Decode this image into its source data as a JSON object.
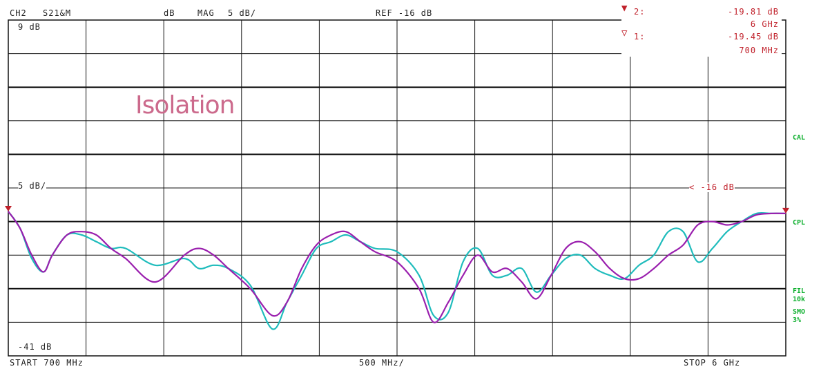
{
  "header": {
    "channel": "CH2",
    "param": "S21&M",
    "unit": "dB",
    "format": "MAG",
    "scale": "5 dB/",
    "ref": "REF -16 dB"
  },
  "markers": [
    {
      "symbol": "▼",
      "label": "2:",
      "value": "-19.81 dB",
      "freq": "6 GHz"
    },
    {
      "symbol": "▽",
      "label": "1:",
      "value": "-19.45 dB",
      "freq": "700 MHz"
    }
  ],
  "side_labels": {
    "cal": "CAL",
    "cpl": "CPL",
    "fil": "FIL",
    "fil_val": "10k",
    "smo": "SMO",
    "smo_val": "3%"
  },
  "grid_labels": {
    "top": "9 dB",
    "mid": "5 dB/",
    "bottom": "-41 dB",
    "ref": "< -16 dB"
  },
  "footer": {
    "start": "START 700 MHz",
    "span": "500 MHz/",
    "stop": "STOP 6 GHz"
  },
  "colors": {
    "trace1": "#9a1fae",
    "trace2": "#1fbcbc",
    "marker": "#c0202a",
    "annot": "#10b030"
  },
  "chart_data": {
    "type": "line",
    "title": "Isolation",
    "xlabel": "",
    "ylabel": "",
    "xlim": [
      0.7,
      6.0
    ],
    "ylim": [
      -41,
      9
    ],
    "x_unit": "GHz",
    "y_unit": "dB",
    "series": [
      {
        "x": [
          0.7,
          0.78,
          0.86,
          0.94,
          1.0,
          1.1,
          1.2,
          1.3,
          1.4,
          1.5,
          1.7,
          1.9,
          2.0,
          2.1,
          2.2,
          2.35,
          2.5,
          2.6,
          2.7,
          2.8,
          2.9,
          3.0,
          3.1,
          3.2,
          3.35,
          3.5,
          3.6,
          3.7,
          3.8,
          3.9,
          4.0,
          4.1,
          4.2,
          4.3,
          4.4,
          4.5,
          4.6,
          4.7,
          4.8,
          4.9,
          5.0,
          5.1,
          5.2,
          5.3,
          5.4,
          5.5,
          5.6,
          5.7,
          5.8,
          5.9,
          6.0
        ],
        "values": [
          -19.5,
          -22,
          -26,
          -28.5,
          -26,
          -23,
          -22.5,
          -23,
          -25,
          -26.5,
          -30,
          -26,
          -25,
          -26,
          -28,
          -31,
          -35,
          -33,
          -28,
          -24.5,
          -23,
          -22.5,
          -24,
          -25.5,
          -27,
          -31,
          -36,
          -33,
          -29,
          -26,
          -28.5,
          -28,
          -30,
          -32.5,
          -29,
          -25,
          -24,
          -25.5,
          -28,
          -29.5,
          -29.5,
          -28,
          -26,
          -24.5,
          -21.5,
          -21,
          -21.5,
          -21,
          -20,
          -19.8,
          -19.8
        ]
      },
      {
        "x": [
          0.7,
          0.78,
          0.86,
          0.94,
          1.0,
          1.1,
          1.2,
          1.3,
          1.4,
          1.5,
          1.7,
          1.9,
          2.0,
          2.1,
          2.2,
          2.35,
          2.5,
          2.6,
          2.7,
          2.8,
          2.9,
          3.0,
          3.1,
          3.2,
          3.35,
          3.5,
          3.6,
          3.7,
          3.8,
          3.9,
          4.0,
          4.1,
          4.2,
          4.3,
          4.4,
          4.5,
          4.6,
          4.7,
          4.8,
          4.9,
          5.0,
          5.1,
          5.2,
          5.3,
          5.4,
          5.5,
          5.6,
          5.7,
          5.8,
          5.9,
          6.0
        ],
        "values": [
          -19.5,
          -22,
          -26.5,
          -28.5,
          -26,
          -23,
          -23,
          -24,
          -25,
          -25,
          -27.5,
          -26.5,
          -28,
          -27.5,
          -28,
          -30.5,
          -37,
          -33,
          -29,
          -25,
          -24,
          -23,
          -24,
          -25,
          -25.5,
          -29,
          -35,
          -34.5,
          -27,
          -25,
          -29,
          -29,
          -28,
          -31.5,
          -29,
          -26.5,
          -26,
          -28,
          -29,
          -29.5,
          -27.5,
          -26,
          -22.5,
          -22.5,
          -27,
          -25,
          -22.5,
          -21,
          -19.8,
          -19.8,
          -19.8
        ]
      }
    ]
  }
}
